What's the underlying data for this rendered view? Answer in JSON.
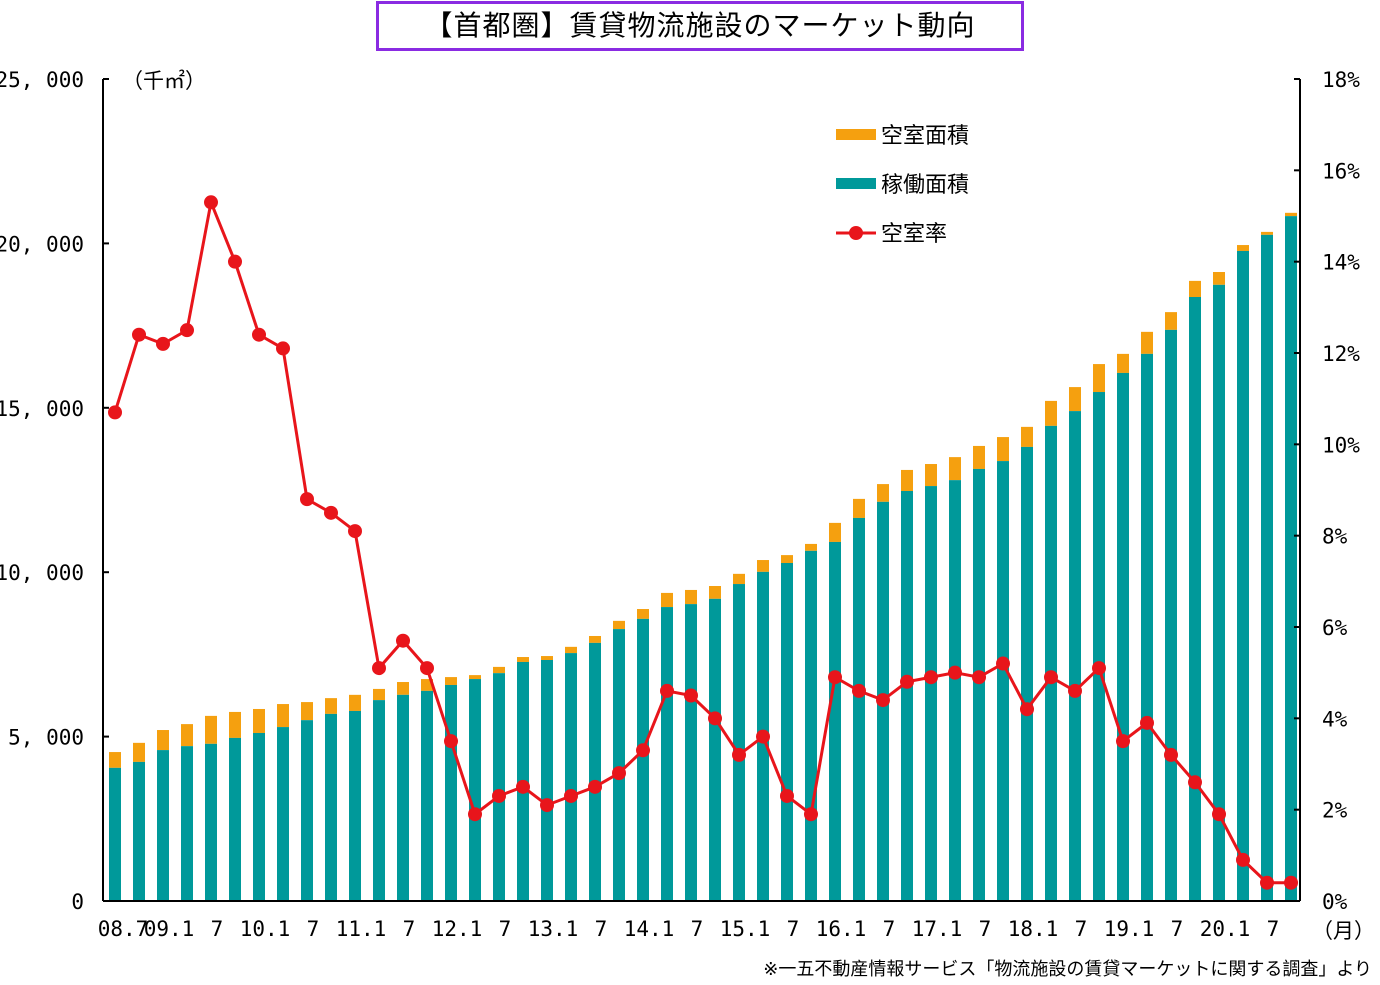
{
  "chart_data": {
    "type": "bar+line",
    "title": "【首都圏】賃貸物流施設のマーケット動向",
    "left_unit": "（千㎡）",
    "x_unit": "（月）",
    "footnote": "※一五不動産情報サービス「物流施設の賃貸マーケットに関する調査」より",
    "left_ylim": [
      0,
      25000
    ],
    "right_ylim": [
      0,
      18
    ],
    "left_ticks": [
      "0",
      "5, 000",
      "10, 000",
      "15, 000",
      "20, 000",
      "25, 000"
    ],
    "left_tick_values": [
      0,
      5000,
      10000,
      15000,
      20000,
      25000
    ],
    "right_ticks": [
      "0%",
      "2%",
      "4%",
      "6%",
      "8%",
      "10%",
      "12%",
      "14%",
      "16%",
      "18%"
    ],
    "right_tick_values": [
      0,
      2,
      4,
      6,
      8,
      10,
      12,
      14,
      16,
      18
    ],
    "x_tick_labels": [
      "08.7",
      "09.1",
      "7",
      "10.1",
      "7",
      "11.1",
      "7",
      "12.1",
      "7",
      "13.1",
      "7",
      "14.1",
      "7",
      "15.1",
      "7",
      "16.1",
      "7",
      "17.1",
      "7",
      "18.1",
      "7",
      "19.1",
      "7",
      "20.1",
      "7"
    ],
    "x_tick_every": 2,
    "legend": [
      {
        "name": "空室面積",
        "color": "#f5a00f",
        "kind": "bar"
      },
      {
        "name": "稼働面積",
        "color": "#00999a",
        "kind": "bar"
      },
      {
        "name": "空室率",
        "color": "#e8151b",
        "kind": "line"
      }
    ],
    "occupied_area": [
      4050,
      4230,
      4590,
      4710,
      4780,
      4960,
      5110,
      5290,
      5500,
      5690,
      5780,
      6110,
      6270,
      6390,
      6570,
      6750,
      6930,
      7270,
      7330,
      7540,
      7850,
      8270,
      8580,
      8940,
      9030,
      9190,
      9640,
      10010,
      10280,
      10650,
      10920,
      11650,
      12140,
      12470,
      12620,
      12800,
      13140,
      13380,
      13810,
      14450,
      14900,
      15480,
      16060,
      16640,
      17370,
      18370,
      18740,
      19770,
      20260,
      20830
    ],
    "total_area": [
      4530,
      4810,
      5200,
      5380,
      5630,
      5750,
      5840,
      5990,
      6050,
      6170,
      6270,
      6450,
      6660,
      6750,
      6810,
      6870,
      7120,
      7420,
      7450,
      7730,
      8060,
      8520,
      8880,
      9370,
      9460,
      9580,
      9950,
      10370,
      10520,
      10860,
      11500,
      12230,
      12680,
      13110,
      13290,
      13500,
      13840,
      14110,
      14420,
      15210,
      15630,
      16330,
      16640,
      17310,
      17910,
      18860,
      19130,
      19950,
      20350,
      20930
    ],
    "vacancy_rate": [
      10.7,
      12.4,
      12.2,
      12.5,
      15.3,
      14.0,
      12.4,
      12.1,
      8.8,
      8.5,
      8.1,
      5.1,
      5.7,
      5.1,
      3.5,
      1.9,
      2.3,
      2.5,
      2.1,
      2.3,
      2.5,
      2.8,
      3.3,
      4.6,
      4.5,
      4.0,
      3.2,
      3.6,
      2.3,
      1.9,
      4.9,
      4.6,
      4.4,
      4.8,
      4.9,
      5.0,
      4.9,
      5.2,
      4.2,
      4.9,
      4.6,
      5.1,
      3.5,
      3.9,
      3.2,
      2.6,
      1.9,
      0.9,
      0.4,
      0.4
    ]
  }
}
